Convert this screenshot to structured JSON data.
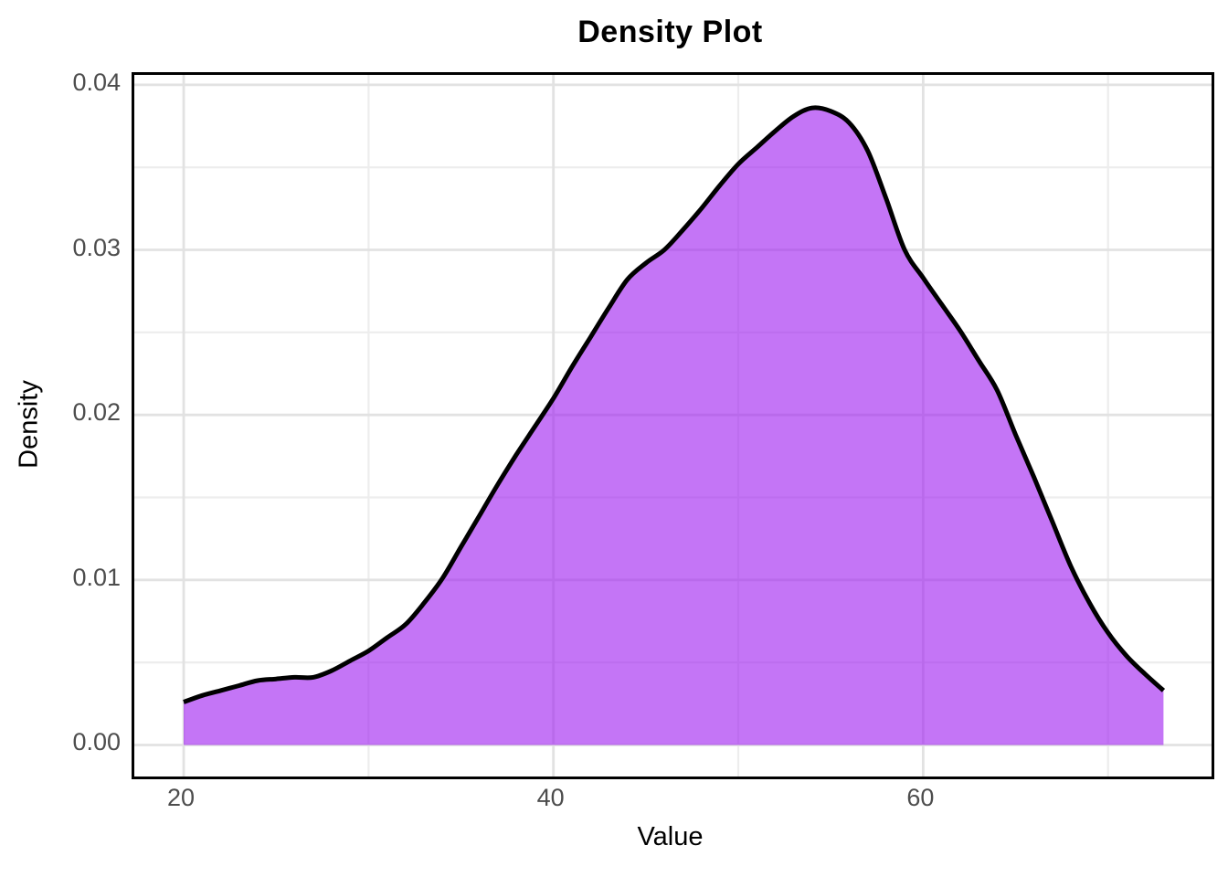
{
  "title": "Density Plot",
  "x_axis": {
    "label": "Value",
    "tick_labels": [
      "20",
      "40",
      "60"
    ]
  },
  "y_axis": {
    "label": "Density",
    "tick_labels": [
      "0.00",
      "0.01",
      "0.02",
      "0.03",
      "0.04"
    ]
  },
  "colors": {
    "fill": "#A020F0",
    "fill_opacity": 0.62,
    "line": "#000000",
    "grid_major": "#E2E2E2",
    "grid_minor": "#EDEDED",
    "panel_border": "#000000",
    "tick_text": "#4d4d4d",
    "title_text": "#000000"
  },
  "chart_data": {
    "type": "area",
    "title": "Density Plot",
    "xlabel": "Value",
    "ylabel": "Density",
    "x_ticks": [
      20,
      40,
      60
    ],
    "x_minor_ticks": [
      30,
      50,
      70
    ],
    "y_ticks": [
      0,
      0.01,
      0.02,
      0.03,
      0.04
    ],
    "y_minor_ticks": [
      0.005,
      0.015,
      0.025,
      0.035
    ],
    "xlim": [
      17.33,
      75.6
    ],
    "ylim": [
      -0.00191,
      0.0406
    ],
    "grid": true,
    "legend": false,
    "line_width": 5,
    "curve": {
      "x": [
        20,
        21,
        22,
        23,
        24,
        25,
        26,
        27,
        28,
        29,
        30,
        31,
        32,
        33,
        34,
        35,
        36,
        37,
        38,
        39,
        40,
        41,
        42,
        43,
        44,
        45,
        46,
        47,
        48,
        49,
        50,
        51,
        52,
        53,
        54,
        55,
        56,
        57,
        58,
        59,
        60,
        61,
        62,
        63,
        64,
        65,
        66,
        67,
        68,
        69,
        70,
        71,
        72,
        73
      ],
      "density": [
        0.0026,
        0.003,
        0.0033,
        0.0036,
        0.0039,
        0.004,
        0.0041,
        0.0041,
        0.0045,
        0.0051,
        0.0057,
        0.0065,
        0.0073,
        0.0086,
        0.0101,
        0.012,
        0.0139,
        0.0158,
        0.0176,
        0.0193,
        0.021,
        0.0229,
        0.0247,
        0.0265,
        0.0282,
        0.0292,
        0.03,
        0.0312,
        0.0325,
        0.0339,
        0.0352,
        0.0362,
        0.0372,
        0.0381,
        0.0386,
        0.0384,
        0.0377,
        0.036,
        0.0331,
        0.03,
        0.0283,
        0.0267,
        0.0251,
        0.0233,
        0.0215,
        0.0188,
        0.0162,
        0.0135,
        0.0108,
        0.0086,
        0.0068,
        0.0054,
        0.0043,
        0.0033
      ]
    }
  }
}
